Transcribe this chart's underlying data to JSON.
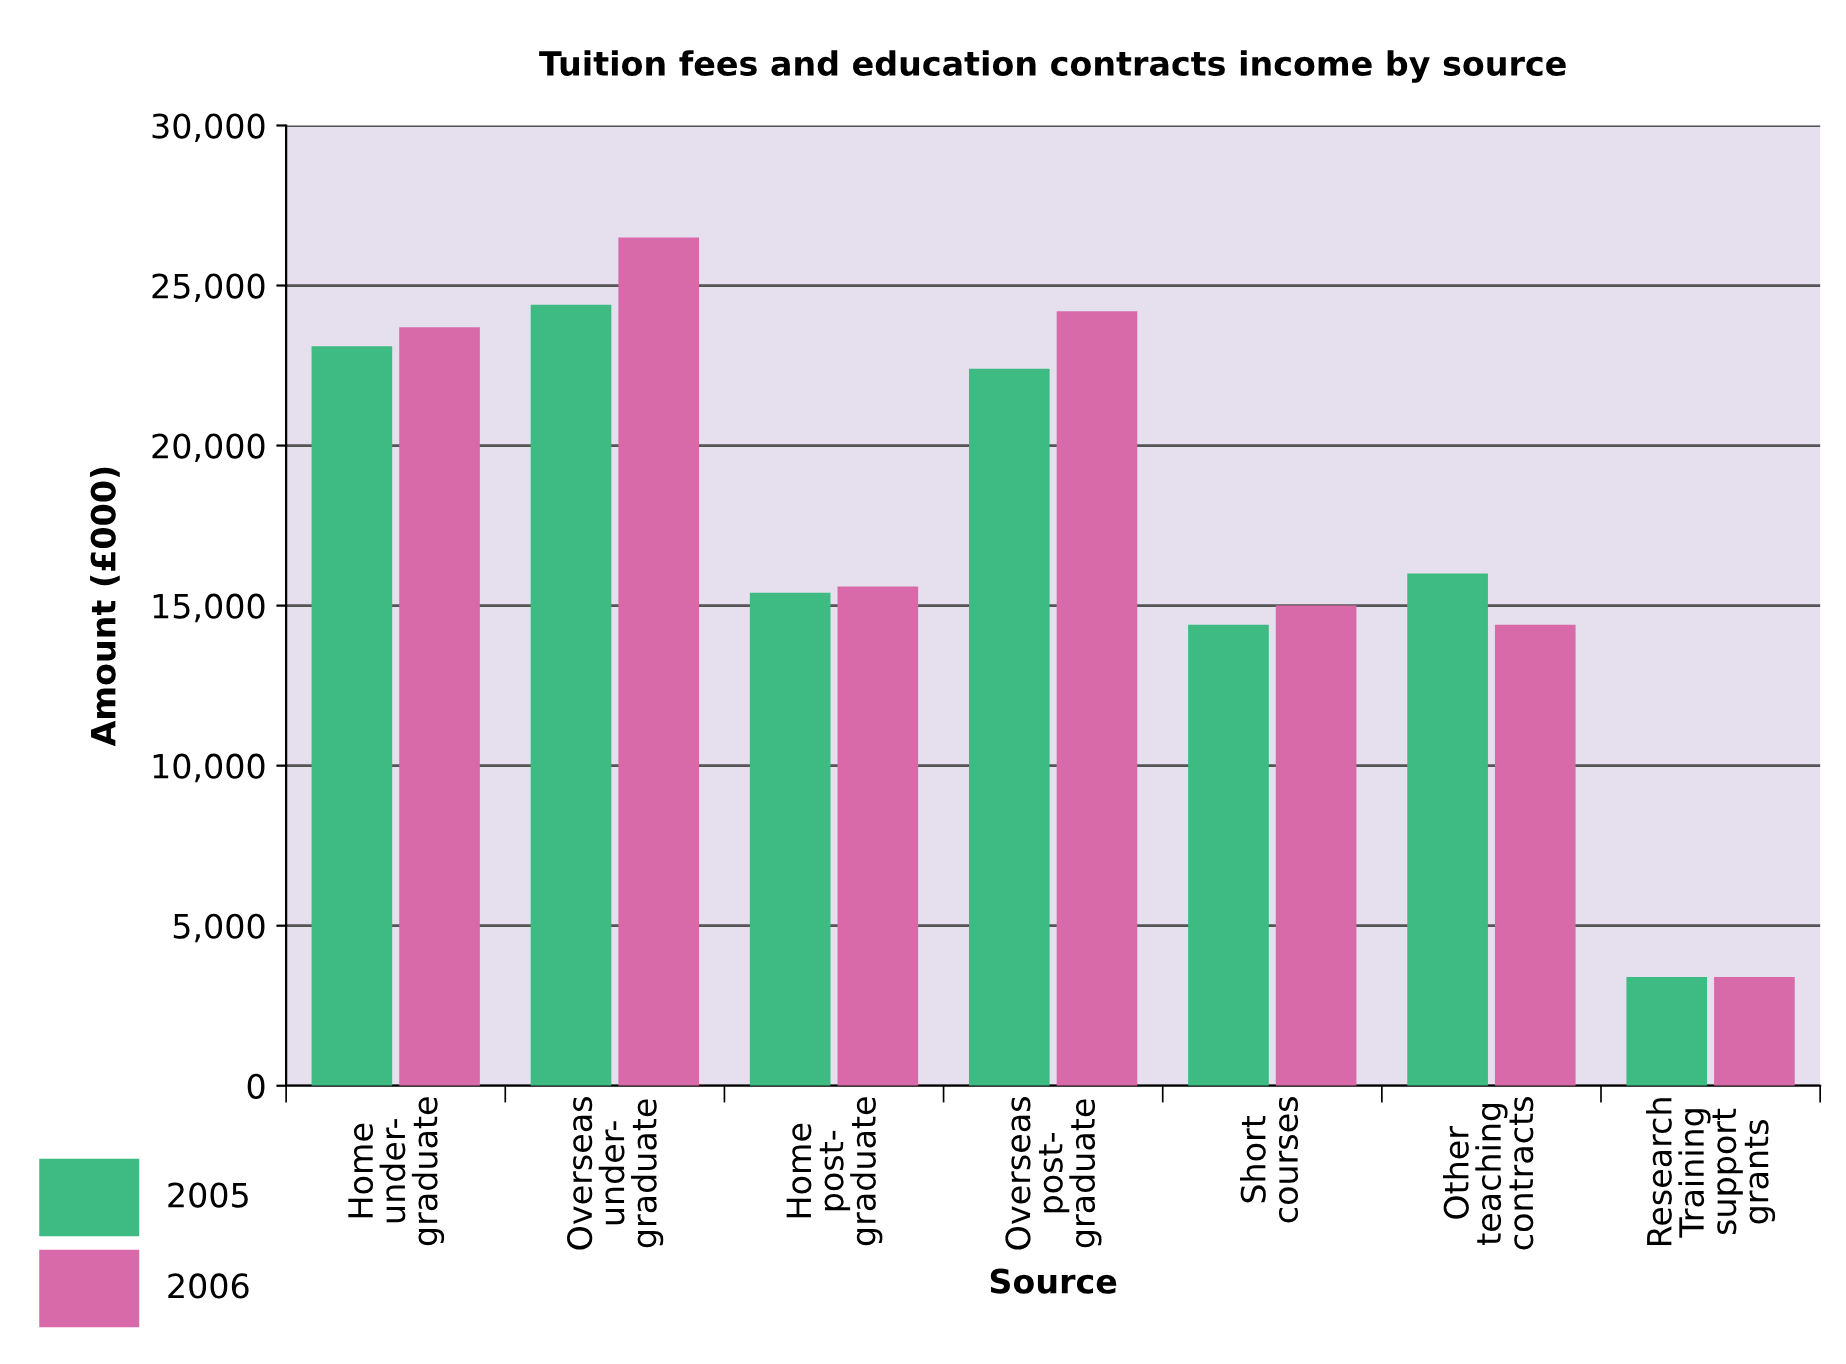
{
  "chart_data": {
    "type": "bar",
    "title": "Tuition fees and education contracts income by source",
    "xlabel": "Source",
    "ylabel": "Amount (£000)",
    "categories": [
      "Home\nunder-\ngraduate",
      "Overseas\nunder-\ngraduate",
      "Home\npost-\ngraduate",
      "Overseas\npost-\ngraduate",
      "Short\ncourses",
      "Other\nteaching\ncontracts",
      "Research\nTraining\nsupport\ngrants"
    ],
    "series": [
      {
        "name": "2005",
        "color": "#3dbb82",
        "values": [
          23100,
          24400,
          15400,
          22400,
          14400,
          16000,
          3400
        ]
      },
      {
        "name": "2006",
        "color": "#d96aaa",
        "values": [
          23700,
          26500,
          15600,
          24200,
          15000,
          14400,
          3400
        ]
      }
    ],
    "ylim": [
      0,
      30000
    ],
    "yticks": [
      {
        "value": 0,
        "label": "0"
      },
      {
        "value": 5000,
        "label": "5,000"
      },
      {
        "value": 10000,
        "label": "10,000"
      },
      {
        "value": 15000,
        "label": "15,000"
      },
      {
        "value": 20000,
        "label": "20,000"
      },
      {
        "value": 25000,
        "label": "25,000"
      },
      {
        "value": 30000,
        "label": "30,000"
      }
    ],
    "grid": "y",
    "legend": "bottom left"
  }
}
